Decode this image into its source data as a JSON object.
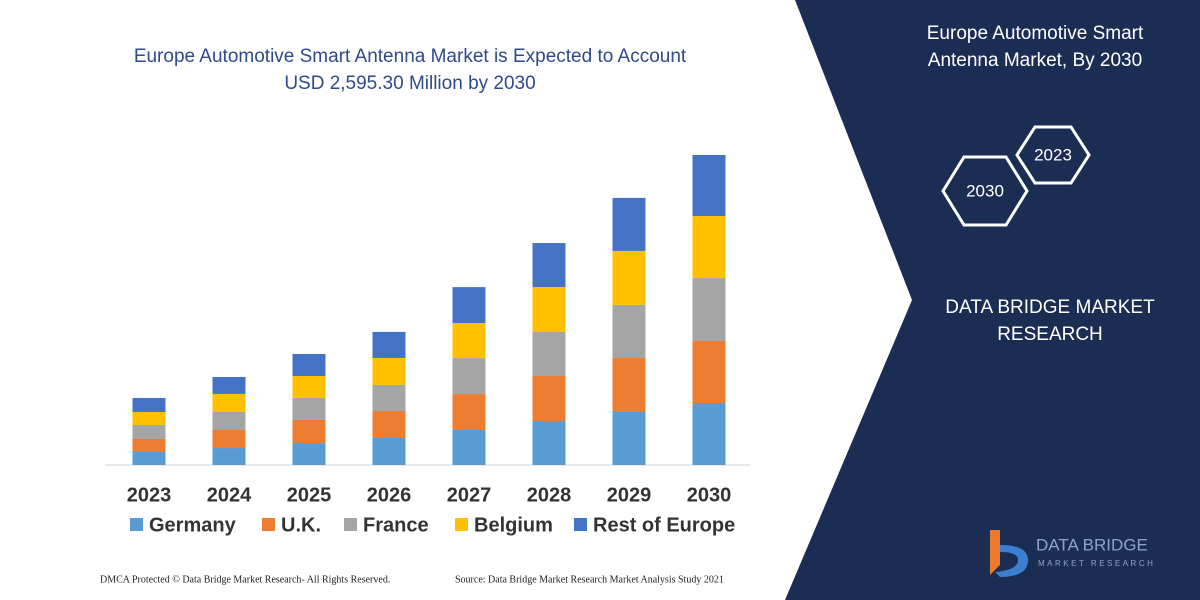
{
  "chart_data": {
    "type": "stacked_bar",
    "title": "Europe Automotive Smart Antenna Market is Expected to Account USD 2,595.30 Million by 2030",
    "categories": [
      "2023",
      "2024",
      "2025",
      "2026",
      "2027",
      "2028",
      "2029",
      "2030"
    ],
    "series": [
      {
        "name": "Germany",
        "color": "#5b9bd5",
        "values": [
          109,
          142,
          184,
          226,
          293,
          368,
          444,
          519
        ]
      },
      {
        "name": "U.K.",
        "color": "#ed7d31",
        "values": [
          109,
          151,
          193,
          226,
          301,
          377,
          452,
          519
        ]
      },
      {
        "name": "France",
        "color": "#a5a5a5",
        "values": [
          117,
          151,
          184,
          218,
          301,
          368,
          444,
          527
        ]
      },
      {
        "name": "Belgium",
        "color": "#ffc000",
        "values": [
          109,
          151,
          184,
          226,
          293,
          377,
          452,
          519
        ]
      },
      {
        "name": "Rest of Europe",
        "color": "#4472c4",
        "values": [
          117,
          142,
          184,
          218,
          301,
          368,
          444,
          511
        ]
      }
    ]
  },
  "panel": {
    "title": "Europe Automotive Smart Antenna Market, By 2030",
    "badges": [
      "2023",
      "2030"
    ],
    "company": "DATA BRIDGE MARKET RESEARCH"
  },
  "logo": {
    "name": "DATA BRIDGE",
    "tagline": "MARKET RESEARCH"
  },
  "footer": {
    "copyright": "DMCA Protected © Data Bridge Market Research-  All Rights Reserved.",
    "source": "Source: Data Bridge Market Research  Market Analysis Study 2021"
  }
}
